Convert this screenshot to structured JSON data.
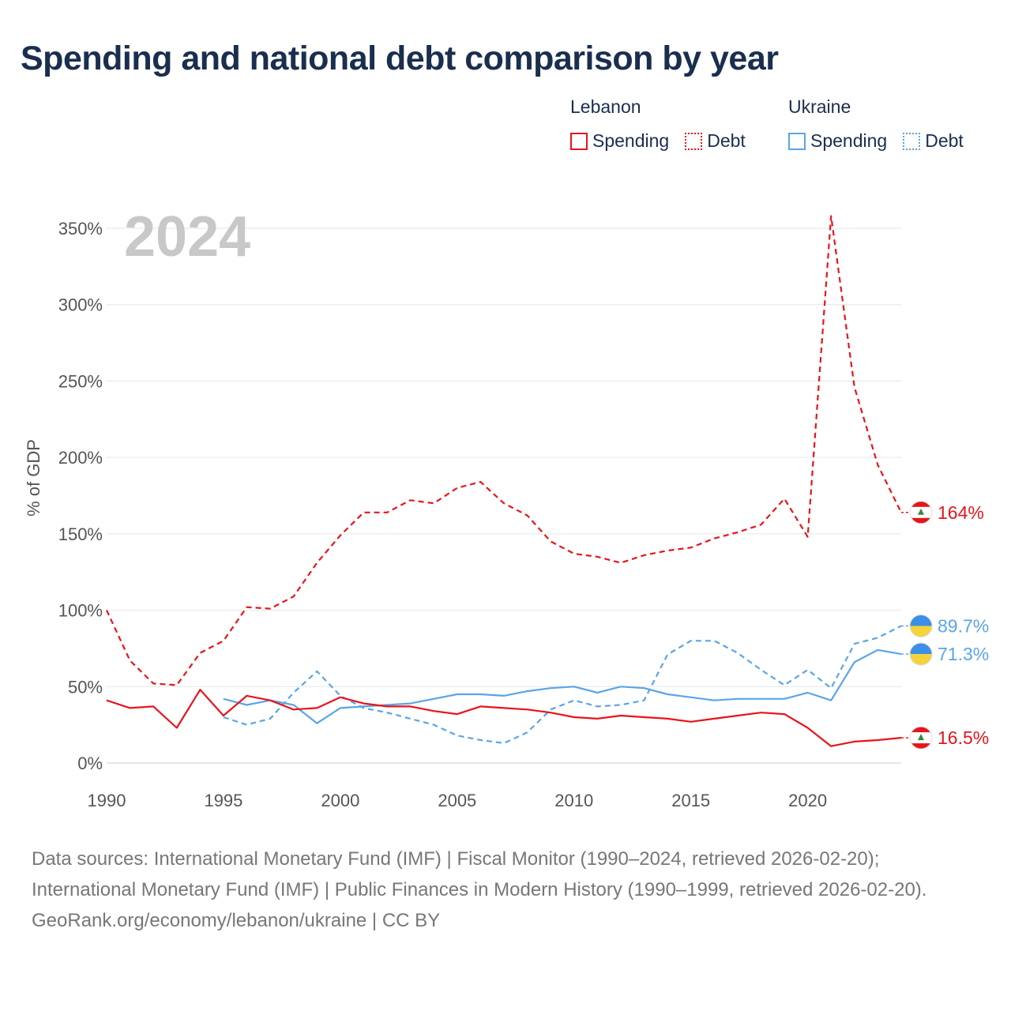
{
  "title": "Spending and national debt comparison by year",
  "legend": {
    "lebanon": {
      "country": "Lebanon",
      "spending": "Spending",
      "debt": "Debt"
    },
    "ukraine": {
      "country": "Ukraine",
      "spending": "Spending",
      "debt": "Debt"
    }
  },
  "colors": {
    "lebanon": "#e8141b",
    "ukraine": "#5aa5e6"
  },
  "chart_data": {
    "type": "line",
    "year_marker": "2024",
    "ylabel": "% of GDP",
    "ylim": [
      0,
      360
    ],
    "xlim": [
      1990,
      2024
    ],
    "yticks": [
      0,
      50,
      100,
      150,
      200,
      250,
      300,
      350
    ],
    "ytick_labels": [
      "0%",
      "50%",
      "100%",
      "150%",
      "200%",
      "250%",
      "300%",
      "350%"
    ],
    "xticks": [
      1990,
      1995,
      2000,
      2005,
      2010,
      2015,
      2020
    ],
    "xtick_labels": [
      "1990",
      "1995",
      "2000",
      "2005",
      "2010",
      "2015",
      "2020"
    ],
    "series": [
      {
        "name": "Lebanon Debt",
        "country": "lebanon",
        "style": "dashed",
        "end_label": "164%",
        "x": [
          1990,
          1991,
          1992,
          1993,
          1994,
          1995,
          1996,
          1997,
          1998,
          1999,
          2000,
          2001,
          2002,
          2003,
          2004,
          2005,
          2006,
          2007,
          2008,
          2009,
          2010,
          2011,
          2012,
          2013,
          2014,
          2015,
          2016,
          2017,
          2018,
          2019,
          2020,
          2021,
          2022,
          2023,
          2024
        ],
        "values": [
          100,
          67,
          52,
          51,
          72,
          80,
          102,
          101,
          109,
          131,
          149,
          164,
          164,
          172,
          170,
          180,
          184,
          170,
          162,
          145,
          137,
          135,
          131,
          136,
          139,
          141,
          147,
          151,
          156,
          173,
          148,
          358,
          246,
          195,
          164
        ]
      },
      {
        "name": "Ukraine Debt",
        "country": "ukraine",
        "style": "dashed",
        "end_label": "89.7%",
        "x": [
          1995,
          1996,
          1997,
          1998,
          1999,
          2000,
          2001,
          2002,
          2003,
          2004,
          2005,
          2006,
          2007,
          2008,
          2009,
          2010,
          2011,
          2012,
          2013,
          2014,
          2015,
          2016,
          2017,
          2018,
          2019,
          2020,
          2021,
          2022,
          2023,
          2024
        ],
        "values": [
          30,
          25,
          29,
          46,
          60,
          44,
          36,
          33,
          29,
          25,
          18,
          15,
          13,
          20,
          35,
          41,
          37,
          38,
          41,
          71,
          80,
          80,
          72,
          61,
          51,
          61,
          49,
          78,
          82,
          89.7
        ]
      },
      {
        "name": "Ukraine Spending",
        "country": "ukraine",
        "style": "solid",
        "end_label": "71.3%",
        "x": [
          1995,
          1996,
          1997,
          1998,
          1999,
          2000,
          2001,
          2002,
          2003,
          2004,
          2005,
          2006,
          2007,
          2008,
          2009,
          2010,
          2011,
          2012,
          2013,
          2014,
          2015,
          2016,
          2017,
          2018,
          2019,
          2020,
          2021,
          2022,
          2023,
          2024
        ],
        "values": [
          42,
          38,
          41,
          38,
          26,
          36,
          37,
          38,
          39,
          42,
          45,
          45,
          44,
          47,
          49,
          50,
          46,
          50,
          49,
          45,
          43,
          41,
          42,
          42,
          42,
          46,
          41,
          66,
          74,
          71.3
        ]
      },
      {
        "name": "Lebanon Spending",
        "country": "lebanon",
        "style": "solid",
        "end_label": "16.5%",
        "x": [
          1990,
          1991,
          1992,
          1993,
          1994,
          1995,
          1996,
          1997,
          1998,
          1999,
          2000,
          2001,
          2002,
          2003,
          2004,
          2005,
          2006,
          2007,
          2008,
          2009,
          2010,
          2011,
          2012,
          2013,
          2014,
          2015,
          2016,
          2017,
          2018,
          2019,
          2020,
          2021,
          2022,
          2023,
          2024
        ],
        "values": [
          41,
          36,
          37,
          23,
          48,
          31,
          44,
          41,
          35,
          36,
          43,
          39,
          37,
          37,
          34,
          32,
          37,
          36,
          35,
          33,
          30,
          29,
          31,
          30,
          29,
          27,
          29,
          31,
          33,
          32,
          23,
          11,
          14,
          15,
          16.5
        ]
      }
    ]
  },
  "footer": {
    "sources": "Data sources: International Monetary Fund (IMF) | Fiscal Monitor (1990–2024, retrieved 2026-02-20); International Monetary Fund (IMF) | Public Finances in Modern History (1990–1999, retrieved 2026-02-20).",
    "attribution": "GeoRank.org/economy/lebanon/ukraine | CC BY"
  }
}
